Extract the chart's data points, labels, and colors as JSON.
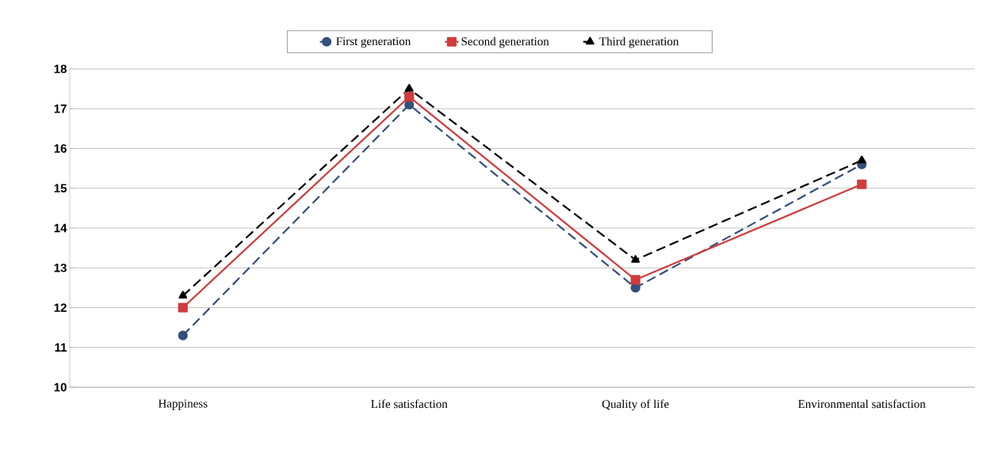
{
  "chart_data": {
    "type": "line",
    "categories": [
      "Happiness",
      "Life satisfaction",
      "Quality of life",
      "Environmental satisfaction"
    ],
    "series": [
      {
        "name": "First generation",
        "color": "#34507a",
        "values": [
          11.3,
          17.1,
          12.5,
          15.6
        ],
        "marker": "circle",
        "line_style": "dashed"
      },
      {
        "name": "Second generation",
        "color": "#d03c3c",
        "values": [
          12.0,
          17.3,
          12.7,
          15.1
        ],
        "marker": "square",
        "line_style": "solid"
      },
      {
        "name": "Third generation",
        "color": "#000000",
        "values": [
          12.3,
          17.5,
          13.2,
          15.7
        ],
        "marker": "triangle",
        "line_style": "dashed"
      }
    ],
    "ylim": [
      10,
      18
    ],
    "yticks": [
      10,
      11,
      12,
      13,
      14,
      15,
      16,
      17,
      18
    ],
    "grid": "y",
    "legend": "top"
  }
}
